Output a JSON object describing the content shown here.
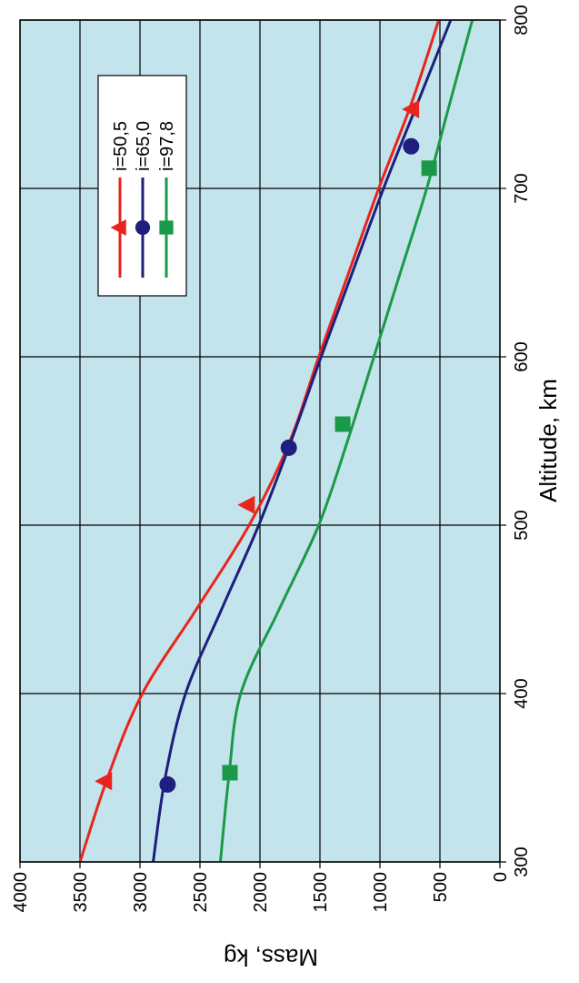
{
  "chart_data": {
    "type": "line",
    "orientation": "rotated-90-ccw",
    "xlabel": "Altitude, km",
    "ylabel": "Mass, kg",
    "xlim": [
      300,
      800
    ],
    "ylim": [
      0,
      4000
    ],
    "x_ticks": [
      "300",
      "400",
      "500",
      "600",
      "700",
      "800"
    ],
    "y_ticks": [
      "4000",
      "3500",
      "3000",
      "2500",
      "2000",
      "1500",
      "1000",
      "500",
      "0"
    ],
    "grid": true,
    "legend_position": "top-right",
    "colors": {
      "plot_background": "#c3e4ec",
      "grid": "#000000"
    },
    "series": [
      {
        "name": "i=50,5",
        "color": "#e8241c",
        "marker": "triangle",
        "points": [
          [
            300,
            3500
          ],
          [
            350,
            3270
          ],
          [
            400,
            2980
          ],
          [
            450,
            2530
          ],
          [
            500,
            2090
          ],
          [
            550,
            1750
          ],
          [
            600,
            1510
          ],
          [
            650,
            1260
          ],
          [
            700,
            1010
          ],
          [
            750,
            740
          ],
          [
            800,
            510
          ]
        ],
        "marker_points": [
          [
            348,
            3290
          ],
          [
            512,
            2100
          ],
          [
            747,
            730
          ]
        ]
      },
      {
        "name": "i=65,0",
        "color": "#1e1e7e",
        "marker": "circle",
        "points": [
          [
            300,
            2890
          ],
          [
            350,
            2790
          ],
          [
            400,
            2620
          ],
          [
            450,
            2320
          ],
          [
            500,
            2010
          ],
          [
            550,
            1740
          ],
          [
            600,
            1490
          ],
          [
            650,
            1230
          ],
          [
            700,
            970
          ],
          [
            750,
            690
          ],
          [
            800,
            410
          ]
        ],
        "marker_points": [
          [
            346,
            2770
          ],
          [
            546,
            1760
          ],
          [
            725,
            740
          ]
        ]
      },
      {
        "name": "i=97,8",
        "color": "#1a9a48",
        "marker": "square",
        "points": [
          [
            300,
            2330
          ],
          [
            350,
            2260
          ],
          [
            400,
            2160
          ],
          [
            450,
            1840
          ],
          [
            500,
            1510
          ],
          [
            550,
            1270
          ],
          [
            600,
            1050
          ],
          [
            650,
            830
          ],
          [
            700,
            610
          ],
          [
            750,
            420
          ],
          [
            800,
            230
          ]
        ],
        "marker_points": [
          [
            353,
            2250
          ],
          [
            560,
            1310
          ],
          [
            712,
            590
          ]
        ]
      }
    ]
  }
}
